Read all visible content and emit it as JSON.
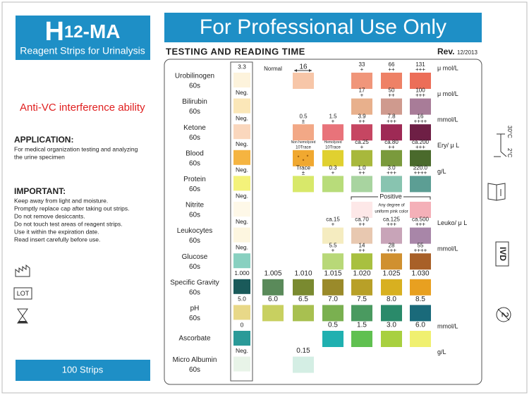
{
  "brand": {
    "h": "H",
    "num": "12",
    "suffix": "-MA",
    "subtitle": "Reagent Strips for Urinalysis"
  },
  "feature": "Anti-VC interference ability",
  "application": {
    "heading": "APPLICATION:",
    "lines": [
      "For medical organization testing and analyzing",
      "the urine specimen"
    ]
  },
  "important": {
    "heading": "IMPORTANT:",
    "lines": [
      "Keep away from light and moisture.",
      "Promptly replace cap after taking out strips.",
      "Do not remove desiccants.",
      "Do not touch test areas of reagent strips.",
      "Use it within the expiration date.",
      "Read insert carefully before use."
    ]
  },
  "symbols": {
    "lot": "LOT",
    "storage_max": "30°C",
    "storage_min": "2°C",
    "ivd": "IVD",
    "single_use": "2"
  },
  "package": "100 Strips",
  "banner": "For Professional Use Only",
  "heading": "TESTING AND READING TIME",
  "revision": {
    "label": "Rev.",
    "date": "12/2013"
  },
  "normal_label": "Normal",
  "rows": [
    {
      "name": "Urobilinogen",
      "time": "60s",
      "unit": "μ mol/L",
      "strip": {
        "label": "3.3",
        "color": "#fdf3dc"
      },
      "swatches": [
        null,
        {
          "label": "16",
          "color": "#f7c6a8"
        },
        null,
        {
          "label": "33",
          "sub": "+",
          "color": "#f0967a"
        },
        {
          "label": "66",
          "sub": "++",
          "color": "#ee8166"
        },
        {
          "label": "131",
          "sub": "+++",
          "color": "#ec6e58"
        }
      ]
    },
    {
      "name": "Bilirubin",
      "time": "60s",
      "unit": "μ mol/L",
      "strip": {
        "label": "Neg.",
        "color": "#fbe7b8"
      },
      "swatches": [
        null,
        null,
        null,
        {
          "label": "17",
          "sub": "+",
          "color": "#e8b08c"
        },
        {
          "label": "50",
          "sub": "++",
          "color": "#cf9a8e"
        },
        {
          "label": "100",
          "sub": "+++",
          "color": "#a87c98"
        }
      ]
    },
    {
      "name": "Ketone",
      "time": "60s",
      "unit": "mmol/L",
      "strip": {
        "label": "Neg.",
        "color": "#fad7bd"
      },
      "swatches": [
        null,
        {
          "label": "0.5",
          "sub": "±",
          "color": "#f2a886"
        },
        {
          "label": "1.5",
          "sub": "+",
          "color": "#e8737a"
        },
        {
          "label": "3.9",
          "sub": "++",
          "color": "#c64662"
        },
        {
          "label": "7.8",
          "sub": "+++",
          "color": "#9e2a55"
        },
        {
          "label": "16",
          "sub": "++++",
          "color": "#6e1f45"
        }
      ]
    },
    {
      "name": "Blood",
      "time": "60s",
      "unit": "Ery/ μ L",
      "strip": {
        "label": "Neg.",
        "color": "#f5b441"
      },
      "swatches": [
        null,
        {
          "label": "Non hemolyzed",
          "sub": "10Trace",
          "color": "#f0a830"
        },
        {
          "label": "Hemolyzed",
          "sub": "10Trace",
          "color": "#e0d030"
        },
        {
          "label": "ca.25",
          "sub": "+",
          "color": "#a8b83c"
        },
        {
          "label": "ca.80",
          "sub": "++",
          "color": "#7a9a3c"
        },
        {
          "label": "ca.200",
          "sub": "+++",
          "color": "#4a6a2c"
        }
      ]
    },
    {
      "name": "Protein",
      "time": "60s",
      "unit": "g/L",
      "strip": {
        "label": "Neg.",
        "color": "#f4f27a"
      },
      "swatches": [
        null,
        {
          "label": "Trace",
          "sub": "±",
          "color": "#d8e86a"
        },
        {
          "label": "0.3",
          "sub": "+",
          "color": "#b8dc7a"
        },
        {
          "label": "1.0",
          "sub": "++",
          "color": "#a8d4a0"
        },
        {
          "label": "3.0",
          "sub": "+++",
          "color": "#88c4b0"
        },
        {
          "label": "≥20.0",
          "sub": "++++",
          "color": "#5c9e94"
        }
      ]
    },
    {
      "name": "Nitrite",
      "time": "60s",
      "strip": {
        "label": "Neg.",
        "color": "#fef8e8"
      },
      "note": "Positive",
      "note_lines": [
        "Any degree of",
        "uniform pink color"
      ],
      "swatches": [
        null,
        null,
        null,
        {
          "color": "#fde8e8"
        },
        null,
        {
          "color": "#f4b0b8"
        }
      ]
    },
    {
      "name": "Leukocytes",
      "time": "60s",
      "unit": "Leuko/ μ L",
      "strip": {
        "label": "Neg.",
        "color": "#fdf6e0"
      },
      "swatches": [
        null,
        null,
        {
          "label": "ca.15",
          "sub": "+",
          "color": "#f5ecc0"
        },
        {
          "label": "ca.70",
          "sub": "++",
          "color": "#e8c8b0"
        },
        {
          "label": "ca.125",
          "sub": "+++",
          "color": "#c8a4b8"
        },
        {
          "label": "ca.500",
          "sub": "+++",
          "color": "#a886a8"
        }
      ]
    },
    {
      "name": "Glucose",
      "time": "60s",
      "unit": "mmol/L",
      "strip": {
        "label": "Neg.",
        "color": "#88d0c0"
      },
      "swatches": [
        null,
        null,
        {
          "label": "5.5",
          "sub": "+",
          "color": "#b8d878"
        },
        {
          "label": "14",
          "sub": "++",
          "color": "#a8c040"
        },
        {
          "label": "28",
          "sub": "+++",
          "color": "#d09030"
        },
        {
          "label": "55",
          "sub": "++++",
          "color": "#a86028"
        }
      ]
    },
    {
      "name": "Specific Gravity",
      "time": "60s",
      "strip": {
        "label": "1.000",
        "color": "#1a5a5a"
      },
      "swatches": [
        {
          "label": "1.005",
          "color": "#5a8a5a"
        },
        {
          "label": "1.010",
          "color": "#7a8a30"
        },
        {
          "label": "1.015",
          "color": "#9a8a2a"
        },
        {
          "label": "1.020",
          "color": "#b8a028"
        },
        {
          "label": "1.025",
          "color": "#d8b020"
        },
        {
          "label": "1.030",
          "color": "#e8a020"
        }
      ]
    },
    {
      "name": "pH",
      "time": "60s",
      "strip": {
        "label": "5.0",
        "color": "#e8d888"
      },
      "swatches": [
        {
          "label": "6.0",
          "color": "#c8d060"
        },
        {
          "label": "6.5",
          "color": "#a8c050"
        },
        {
          "label": "7.0",
          "color": "#7ab050"
        },
        {
          "label": "7.5",
          "color": "#4a9a60"
        },
        {
          "label": "8.0",
          "color": "#2a8a6a"
        },
        {
          "label": "8.5",
          "color": "#1a6a7a"
        }
      ]
    },
    {
      "name": "Ascorbate",
      "unit": "mmol/L",
      "strip": {
        "label": "0",
        "color": "#2a9a98"
      },
      "swatches": [
        null,
        null,
        {
          "label": "0.5",
          "color": "#20b0b0"
        },
        {
          "label": "1.5",
          "color": "#60c050"
        },
        {
          "label": "3.0",
          "color": "#a8d040"
        },
        {
          "label": "6.0",
          "color": "#f0f070"
        }
      ]
    },
    {
      "name": "Micro Albumin",
      "time": "60s",
      "unit": "g/L",
      "strip": {
        "label": "Neg.",
        "color": "#e8f4e8"
      },
      "swatches": [
        null,
        {
          "label": "0.15",
          "color": "#d4eee4"
        },
        null,
        null,
        null,
        null
      ]
    }
  ]
}
